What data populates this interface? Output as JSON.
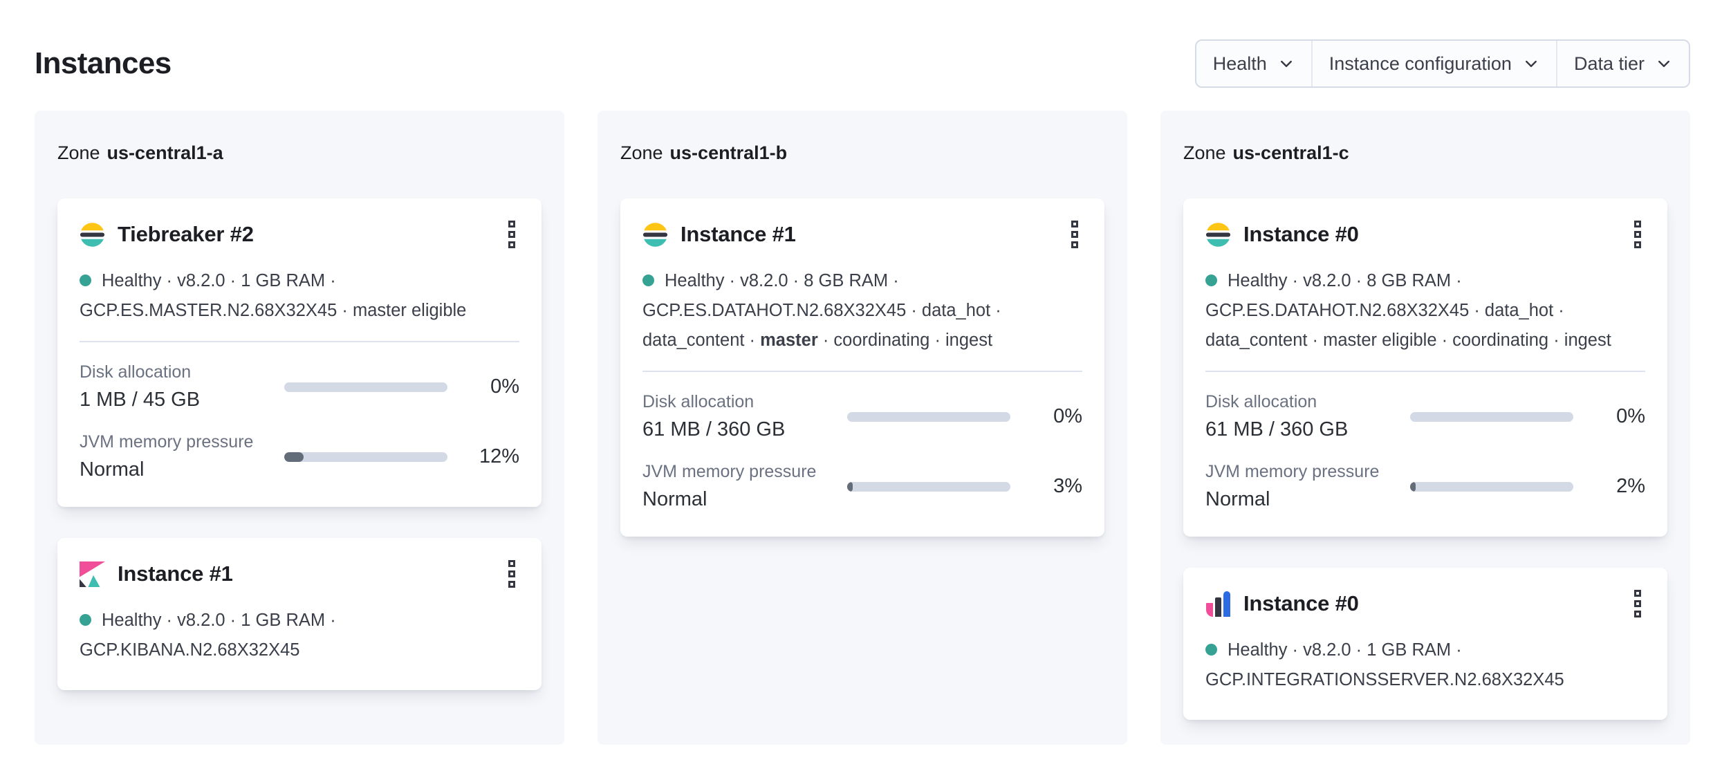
{
  "header": {
    "title": "Instances"
  },
  "filters": [
    {
      "label": "Health"
    },
    {
      "label": "Instance configuration"
    },
    {
      "label": "Data tier"
    }
  ],
  "colors": {
    "elastic_yellow": "#FEC514",
    "elastic_dark": "#343741",
    "elastic_teal": "#3EBEB0",
    "kibana_pink": "#F04E98",
    "integrations_blue": "#2D6BE4",
    "healthy_dot": "#35A294",
    "bar_track": "#D3DAE6",
    "bar_fill": "#636C79",
    "zone_panel_bg": "#F5F7FA"
  },
  "zones": [
    {
      "zone_label": "Zone",
      "zone_name": "us-central1-a",
      "cards": [
        {
          "icon": "elasticsearch-logo",
          "title": "Tiebreaker #2",
          "meta_pre": "Healthy · v8.2.0 · 1 GB RAM · GCP.ES.MASTER.N2.68X32X45 · master eligible",
          "meta_bold": "",
          "meta_post": "",
          "metrics": {
            "disk": {
              "label": "Disk allocation",
              "value": "1 MB / 45 GB",
              "percent_label": "0%",
              "percent": 0
            },
            "jvm": {
              "label": "JVM memory pressure",
              "value": "Normal",
              "percent_label": "12%",
              "percent": 12
            }
          }
        },
        {
          "icon": "kibana-logo",
          "title": "Instance #1",
          "meta_pre": "Healthy · v8.2.0 · 1 GB RAM · GCP.KIBANA.N2.68X32X45",
          "meta_bold": "",
          "meta_post": ""
        }
      ]
    },
    {
      "zone_label": "Zone",
      "zone_name": "us-central1-b",
      "cards": [
        {
          "icon": "elasticsearch-logo",
          "title": "Instance #1",
          "meta_pre": "Healthy · v8.2.0 · 8 GB RAM · GCP.ES.DATAHOT.N2.68X32X45 · data_hot · data_content · ",
          "meta_bold": "master",
          "meta_post": " · coordinating · ingest",
          "metrics": {
            "disk": {
              "label": "Disk allocation",
              "value": "61 MB / 360 GB",
              "percent_label": "0%",
              "percent": 0
            },
            "jvm": {
              "label": "JVM memory pressure",
              "value": "Normal",
              "percent_label": "3%",
              "percent": 3
            }
          }
        }
      ]
    },
    {
      "zone_label": "Zone",
      "zone_name": "us-central1-c",
      "cards": [
        {
          "icon": "elasticsearch-logo",
          "title": "Instance #0",
          "meta_pre": "Healthy · v8.2.0 · 8 GB RAM · GCP.ES.DATAHOT.N2.68X32X45 · data_hot · data_content · master eligible · coordinating · ingest",
          "meta_bold": "",
          "meta_post": "",
          "metrics": {
            "disk": {
              "label": "Disk allocation",
              "value": "61 MB / 360 GB",
              "percent_label": "0%",
              "percent": 0
            },
            "jvm": {
              "label": "JVM memory pressure",
              "value": "Normal",
              "percent_label": "2%",
              "percent": 2
            }
          }
        },
        {
          "icon": "integrations-server-logo",
          "title": "Instance #0",
          "meta_pre": "Healthy · v8.2.0 · 1 GB RAM · GCP.INTEGRATIONSSERVER.N2.68X32X45",
          "meta_bold": "",
          "meta_post": ""
        }
      ]
    }
  ]
}
